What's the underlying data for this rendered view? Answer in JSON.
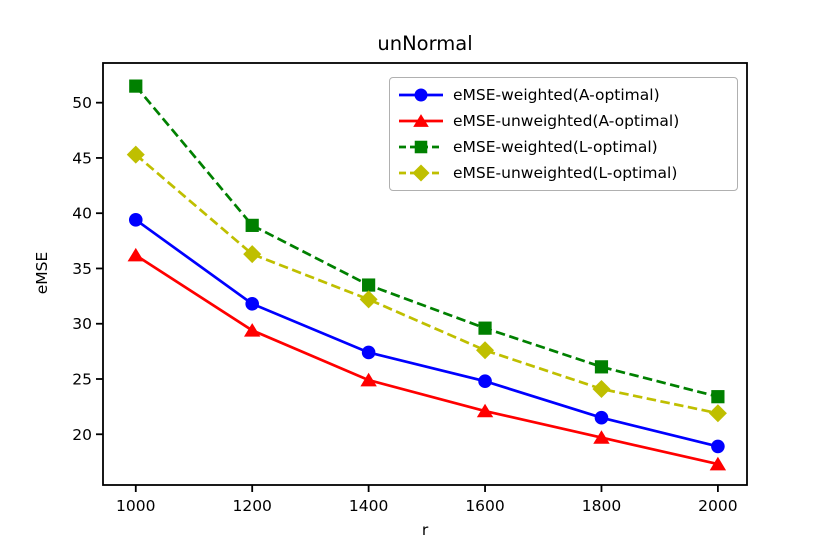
{
  "figure": {
    "background": "#ffffff",
    "text_color": "#000000"
  },
  "chart_data": {
    "type": "line",
    "title": "unNormal",
    "xlabel": "r",
    "ylabel": "eMSE",
    "x": [
      1000,
      1200,
      1400,
      1600,
      1800,
      2000
    ],
    "xticks": [
      "1000",
      "1200",
      "1400",
      "1600",
      "1800",
      "2000"
    ],
    "yticks": [
      "20",
      "25",
      "30",
      "35",
      "40",
      "45",
      "50"
    ],
    "xlim": [
      943.7,
      2050.0
    ],
    "ylim": [
      15.41,
      53.59
    ],
    "grid": false,
    "legend_position": "upper right",
    "series": [
      {
        "name": "eMSE-weighted(A-optimal)",
        "color": "#0000ff",
        "marker": "circle",
        "linestyle": "solid",
        "values": [
          39.4,
          31.8,
          27.4,
          24.8,
          21.5,
          18.9
        ]
      },
      {
        "name": "eMSE-unweighted(A-optimal)",
        "color": "#ff0000",
        "marker": "triangle",
        "linestyle": "solid",
        "values": [
          36.2,
          29.4,
          24.9,
          22.1,
          19.7,
          17.3
        ]
      },
      {
        "name": "eMSE-weighted(L-optimal)",
        "color": "#008000",
        "marker": "square",
        "linestyle": "dashed",
        "values": [
          51.5,
          38.9,
          33.5,
          29.6,
          26.1,
          23.4
        ]
      },
      {
        "name": "eMSE-unweighted(L-optimal)",
        "color": "#bfbf00",
        "marker": "diamond",
        "linestyle": "dashed",
        "values": [
          45.3,
          36.3,
          32.2,
          27.6,
          24.1,
          21.9
        ]
      }
    ]
  }
}
